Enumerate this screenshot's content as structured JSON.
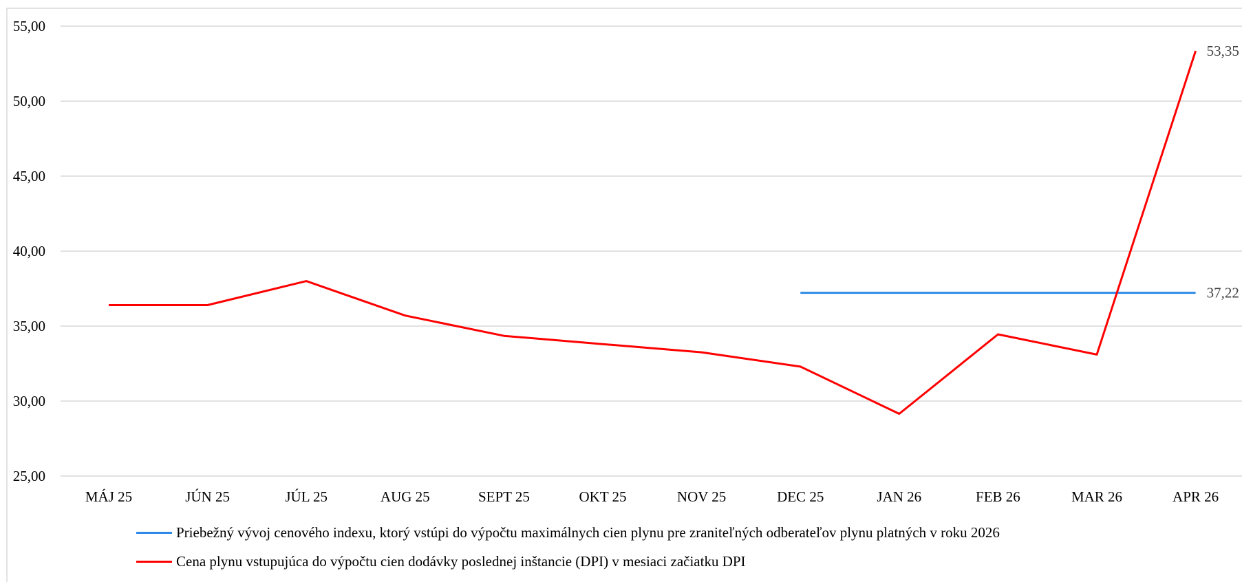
{
  "chart_data": {
    "type": "line",
    "categories": [
      "MÁJ 25",
      "JÚN 25",
      "JÚL 25",
      "AUG 25",
      "SEPT 25",
      "OKT 25",
      "NOV 25",
      "DEC 25",
      "JAN 26",
      "FEB 26",
      "MAR 26",
      "APR 26"
    ],
    "ylim": [
      25,
      55
    ],
    "yticks": [
      "25,00",
      "30,00",
      "35,00",
      "40,00",
      "45,00",
      "50,00",
      "55,00"
    ],
    "grid": true,
    "legend_position": "bottom",
    "series": [
      {
        "name": "Priebežný vývoj cenového indexu, ktorý vstúpi do výpočtu maximálnych cien plynu pre zraniteľných odberateľov plynu platných v roku 2026",
        "color": "#2E8AE6",
        "values": [
          null,
          null,
          null,
          null,
          null,
          null,
          null,
          37.22,
          37.22,
          37.22,
          37.22,
          37.22
        ],
        "end_label": "37,22"
      },
      {
        "name": "Cena plynu vstupujúca do výpočtu cien dodávky poslednej inštancie (DPI) v mesiaci začiatku DPI",
        "color": "#FF0000",
        "values": [
          36.4,
          36.4,
          38.0,
          35.7,
          34.35,
          33.8,
          33.25,
          32.3,
          29.15,
          34.45,
          33.1,
          53.35
        ],
        "end_label": "53,35"
      }
    ]
  }
}
